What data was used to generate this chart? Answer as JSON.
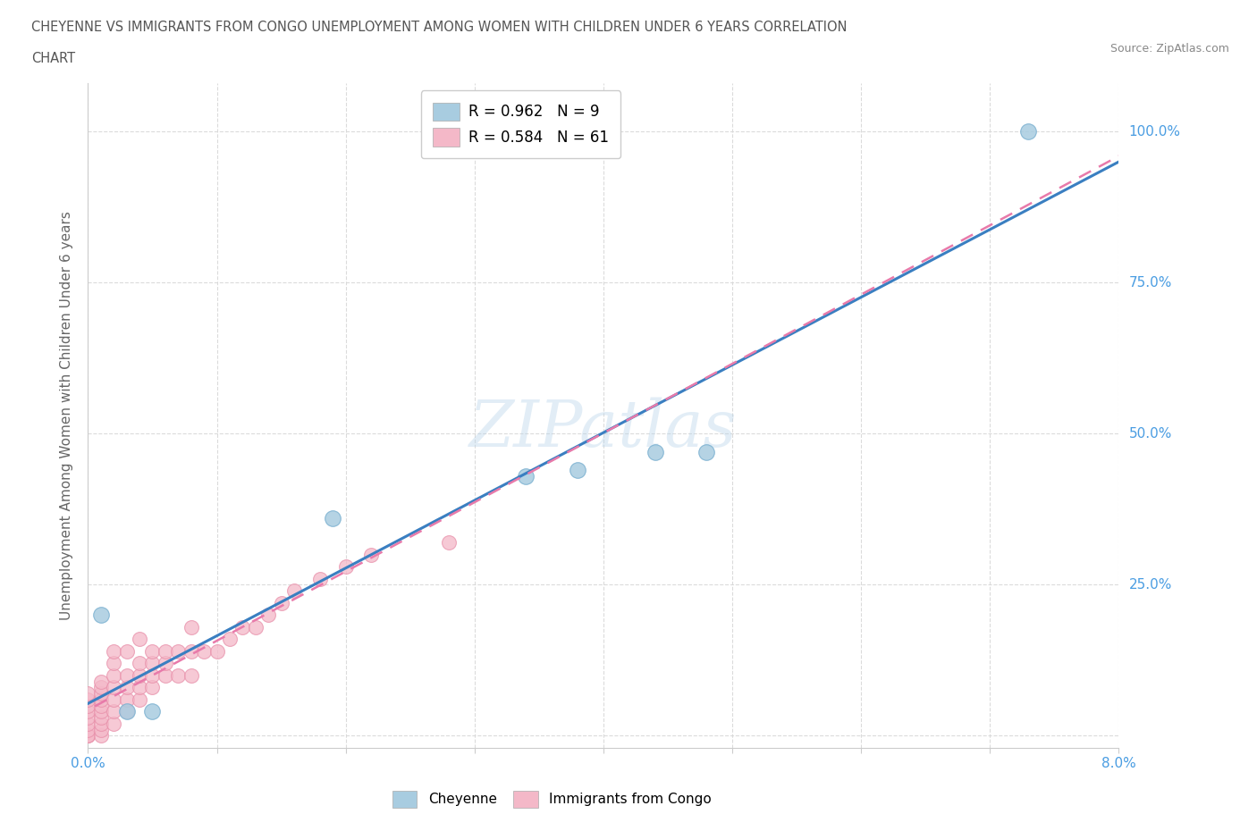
{
  "title_line1": "CHEYENNE VS IMMIGRANTS FROM CONGO UNEMPLOYMENT AMONG WOMEN WITH CHILDREN UNDER 6 YEARS CORRELATION",
  "title_line2": "CHART",
  "source": "Source: ZipAtlas.com",
  "watermark": "ZIPatlas",
  "ylabel": "Unemployment Among Women with Children Under 6 years",
  "xlim": [
    0.0,
    0.08
  ],
  "ylim": [
    -0.02,
    1.08
  ],
  "xticks": [
    0.0,
    0.01,
    0.02,
    0.03,
    0.04,
    0.05,
    0.06,
    0.07,
    0.08
  ],
  "xtick_labels": [
    "0.0%",
    "",
    "",
    "",
    "",
    "",
    "",
    "",
    "8.0%"
  ],
  "ytick_positions": [
    0.0,
    0.25,
    0.5,
    0.75,
    1.0
  ],
  "ytick_labels": [
    "",
    "25.0%",
    "50.0%",
    "75.0%",
    "100.0%"
  ],
  "cheyenne_color": "#a8cce0",
  "congo_color": "#f4b8c8",
  "cheyenne_edge_color": "#7ab0d0",
  "congo_edge_color": "#e890aa",
  "cheyenne_line_color": "#3a7fc1",
  "congo_line_color": "#e87aaa",
  "legend_cheyenne_R": "0.962",
  "legend_cheyenne_N": "9",
  "legend_congo_R": "0.584",
  "legend_congo_N": "61",
  "cheyenne_x": [
    0.001,
    0.003,
    0.005,
    0.019,
    0.034,
    0.038,
    0.044,
    0.048,
    0.073
  ],
  "cheyenne_y": [
    0.2,
    0.04,
    0.04,
    0.36,
    0.43,
    0.44,
    0.47,
    0.47,
    1.0
  ],
  "congo_x": [
    0.0,
    0.0,
    0.0,
    0.0,
    0.0,
    0.0,
    0.0,
    0.0,
    0.0,
    0.0,
    0.001,
    0.001,
    0.001,
    0.001,
    0.001,
    0.001,
    0.001,
    0.001,
    0.001,
    0.001,
    0.002,
    0.002,
    0.002,
    0.002,
    0.002,
    0.002,
    0.002,
    0.003,
    0.003,
    0.003,
    0.003,
    0.003,
    0.004,
    0.004,
    0.004,
    0.004,
    0.004,
    0.005,
    0.005,
    0.005,
    0.005,
    0.006,
    0.006,
    0.006,
    0.007,
    0.007,
    0.008,
    0.008,
    0.008,
    0.009,
    0.01,
    0.011,
    0.012,
    0.013,
    0.014,
    0.015,
    0.016,
    0.018,
    0.02,
    0.022,
    0.028
  ],
  "congo_y": [
    0.0,
    0.0,
    0.0,
    0.01,
    0.02,
    0.03,
    0.04,
    0.05,
    0.06,
    0.07,
    0.0,
    0.01,
    0.02,
    0.03,
    0.04,
    0.05,
    0.06,
    0.07,
    0.08,
    0.09,
    0.02,
    0.04,
    0.06,
    0.08,
    0.1,
    0.12,
    0.14,
    0.04,
    0.06,
    0.08,
    0.1,
    0.14,
    0.06,
    0.08,
    0.1,
    0.12,
    0.16,
    0.08,
    0.1,
    0.12,
    0.14,
    0.1,
    0.12,
    0.14,
    0.1,
    0.14,
    0.1,
    0.14,
    0.18,
    0.14,
    0.14,
    0.16,
    0.18,
    0.18,
    0.2,
    0.22,
    0.24,
    0.26,
    0.28,
    0.3,
    0.32
  ],
  "background_color": "#ffffff",
  "grid_color": "#d8d8d8",
  "tick_color": "#4a9de2",
  "label_color": "#666666"
}
